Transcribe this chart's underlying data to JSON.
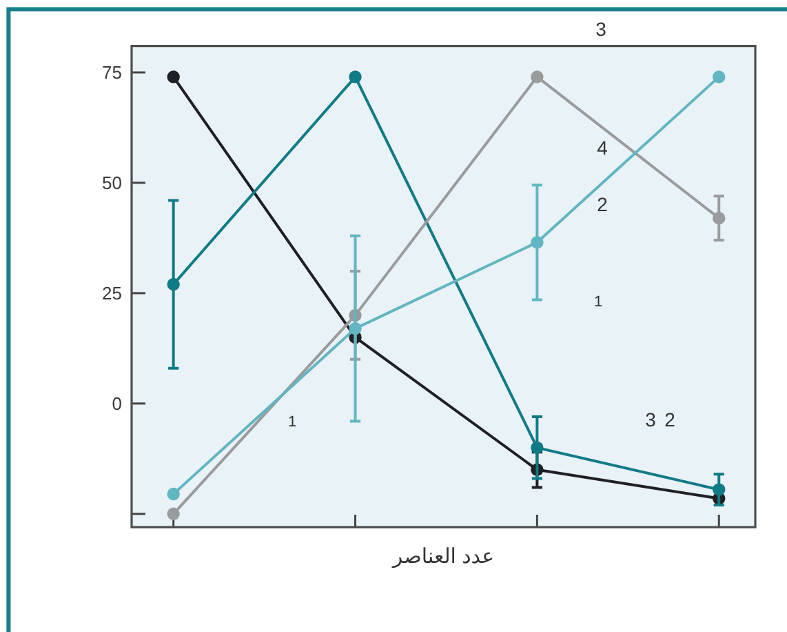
{
  "chart_data": {
    "type": "line",
    "xlabel": "عدد العناصر",
    "categories": [
      null,
      null,
      null,
      null
    ],
    "ylim": [
      -28,
      81
    ],
    "yticks": [
      {
        "value": -25,
        "label": null
      },
      0,
      25,
      50,
      75
    ],
    "marker": "circle",
    "line_style": "solid",
    "series": [
      {
        "color": "#1f1f24",
        "values": [
          74,
          15,
          -15,
          -21.5
        ],
        "errors": [
          null,
          null,
          4,
          null
        ]
      },
      {
        "color": "#0f7b86",
        "values": [
          27,
          74,
          -10,
          -19.5
        ],
        "errors": [
          19,
          null,
          7,
          3.5
        ]
      },
      {
        "color": "#9a9b9d",
        "values": [
          -25,
          20,
          74,
          42
        ],
        "errors": [
          null,
          10,
          null,
          5
        ]
      },
      {
        "color": "#62b5c2",
        "values": [
          -20.5,
          17,
          36.5,
          74
        ],
        "errors": [
          null,
          21,
          13,
          null
        ]
      }
    ],
    "annotations": [
      "3",
      "4",
      "2",
      "1",
      "1",
      "3",
      "2"
    ]
  }
}
